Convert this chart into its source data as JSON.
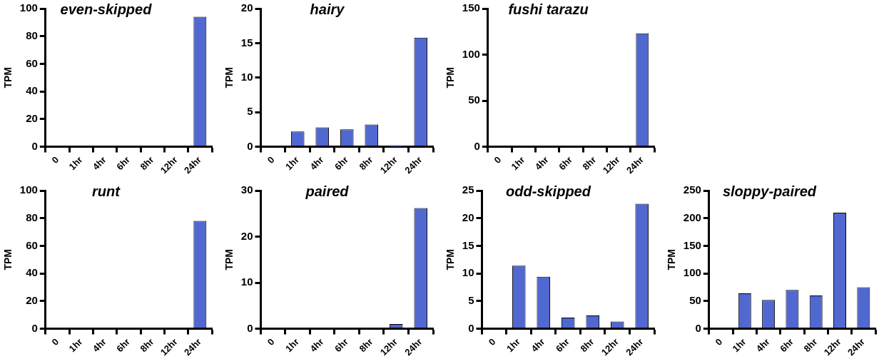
{
  "chart_data": [
    {
      "type": "bar",
      "title": "even-skipped",
      "ylabel": "TPM",
      "categories": [
        "0",
        "1hr",
        "4hr",
        "6hr",
        "8hr",
        "12hr",
        "24hr"
      ],
      "values": [
        0,
        0,
        0,
        0,
        0,
        0,
        94
      ],
      "color": "#5068d0",
      "ylim": [
        0,
        100
      ],
      "yticks": [
        0,
        20,
        40,
        60,
        80,
        100
      ]
    },
    {
      "type": "bar",
      "title": "hairy",
      "ylabel": "TPM",
      "categories": [
        "0",
        "1hr",
        "4hr",
        "6hr",
        "8hr",
        "12hr",
        "24hr"
      ],
      "values": [
        0,
        2.2,
        2.8,
        2.5,
        3.2,
        0.2,
        15.8
      ],
      "color": "#5068d0",
      "ylim": [
        0,
        20
      ],
      "yticks": [
        0,
        5,
        10,
        15,
        20
      ]
    },
    {
      "type": "bar",
      "title": "fushi tarazu",
      "ylabel": "TPM",
      "categories": [
        "0",
        "1hr",
        "4hr",
        "6hr",
        "8hr",
        "12hr",
        "24hr"
      ],
      "values": [
        0,
        0,
        0,
        0,
        0,
        0,
        123
      ],
      "color": "#5068d0",
      "ylim": [
        0,
        150
      ],
      "yticks": [
        0,
        50,
        100,
        150
      ]
    },
    {
      "type": "bar",
      "title": "runt",
      "ylabel": "TPM",
      "categories": [
        "0",
        "1hr",
        "4hr",
        "6hr",
        "8hr",
        "12hr",
        "24hr"
      ],
      "values": [
        0,
        0,
        0,
        0,
        0,
        0,
        78
      ],
      "color": "#5068d0",
      "ylim": [
        0,
        100
      ],
      "yticks": [
        0,
        20,
        40,
        60,
        80,
        100
      ]
    },
    {
      "type": "bar",
      "title": "paired",
      "ylabel": "TPM",
      "categories": [
        "0",
        "1hr",
        "4hr",
        "6hr",
        "8hr",
        "12hr",
        "24hr"
      ],
      "values": [
        0,
        0,
        0,
        0,
        0,
        1,
        26.2
      ],
      "color": "#5068d0",
      "ylim": [
        0,
        30
      ],
      "yticks": [
        0,
        10,
        20,
        30
      ]
    },
    {
      "type": "bar",
      "title": "odd-skipped",
      "ylabel": "TPM",
      "categories": [
        "0",
        "1hr",
        "4hr",
        "6hr",
        "8hr",
        "12hr",
        "24hr"
      ],
      "values": [
        0,
        11.4,
        9.4,
        2,
        2.4,
        1.3,
        22.6
      ],
      "color": "#5068d0",
      "ylim": [
        0,
        25
      ],
      "yticks": [
        0,
        5,
        10,
        15,
        20,
        25
      ]
    },
    {
      "type": "bar",
      "title": "sloppy-paired",
      "ylabel": "TPM",
      "categories": [
        "0",
        "1hr",
        "4hr",
        "6hr",
        "8hr",
        "12hr",
        "24hr"
      ],
      "values": [
        0,
        64,
        52,
        70,
        60,
        210,
        75
      ],
      "color": "#5068d0",
      "ylim": [
        0,
        250
      ],
      "yticks": [
        0,
        50,
        100,
        150,
        200,
        250
      ]
    }
  ]
}
